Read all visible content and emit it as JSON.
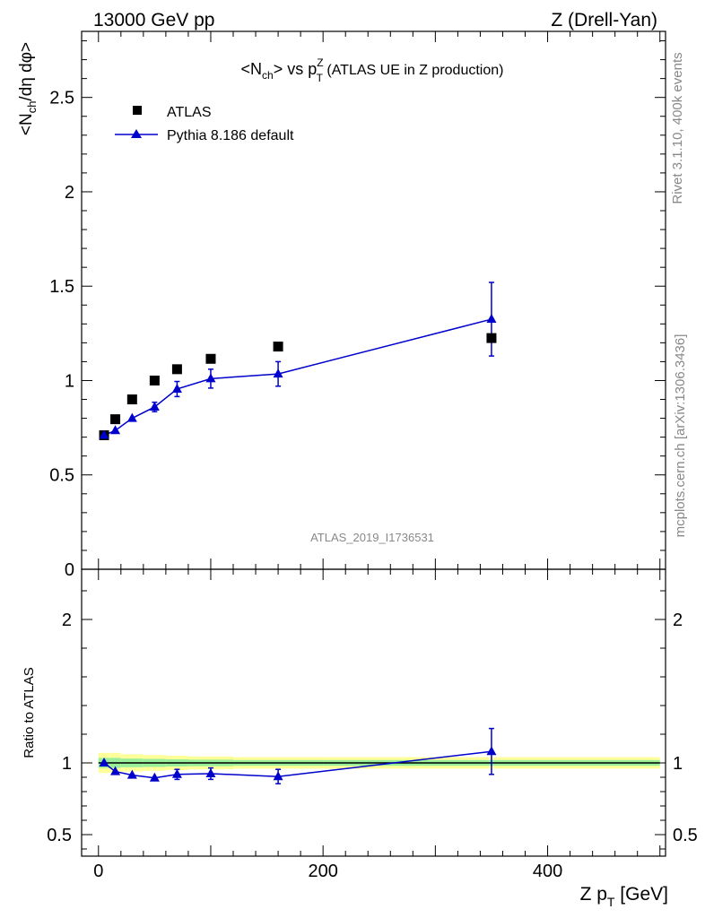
{
  "header": {
    "left": "13000 GeV pp",
    "right": "Z (Drell-Yan)"
  },
  "side_text": {
    "rivet": "Rivet 3.1.10,  400k events",
    "mcplots": "mcplots.cern.ch [arXiv:1306.3436]"
  },
  "chart_data": [
    {
      "type": "scatter",
      "title_parts": {
        "a": "<N",
        "a_sub": "ch",
        "b": "> vs p",
        "b_sup": "Z",
        "b_sub": "T",
        "c": " (ATLAS UE in Z production)"
      },
      "ylabel_parts": {
        "a": "<N",
        "sub": "ch",
        "b": "/dη dφ>"
      },
      "analysis_label": "ATLAS_2019_I1736531",
      "xlim": [
        -15,
        505
      ],
      "ylim": [
        0,
        2.85
      ],
      "yticks": [
        0.5,
        1,
        1.5,
        2,
        2.5
      ],
      "ytick_labels": [
        "0.5",
        "1",
        "1.5",
        "2",
        "2.5"
      ],
      "ybottom_label": "0",
      "series": [
        {
          "name": "ATLAS",
          "marker": "square",
          "color": "#000000",
          "x": [
            5,
            15,
            30,
            50,
            70,
            100,
            160,
            350
          ],
          "y": [
            0.71,
            0.795,
            0.9,
            1.0,
            1.06,
            1.115,
            1.18,
            1.225
          ]
        },
        {
          "name": "Pythia 8.186 default",
          "marker": "triangle",
          "color": "#0000cc",
          "x": [
            5,
            15,
            30,
            50,
            70,
            100,
            160,
            350
          ],
          "y": [
            0.71,
            0.735,
            0.8,
            0.86,
            0.955,
            1.01,
            1.035,
            1.325
          ],
          "err": [
            0.01,
            0.015,
            0.015,
            0.025,
            0.04,
            0.05,
            0.065,
            0.195
          ]
        }
      ]
    },
    {
      "type": "scatter",
      "ylabel": "Ratio to ATLAS",
      "xlabel_parts": {
        "a": "Z p",
        "sub": "T",
        "b": " [GeV]"
      },
      "xlim": [
        -15,
        505
      ],
      "ylim": [
        0.35,
        2.35
      ],
      "yticks": [
        0.5,
        1,
        2
      ],
      "ytick_labels": [
        "0.5",
        "1",
        "2"
      ],
      "xticks": [
        0,
        200,
        400
      ],
      "xtick_labels": [
        "0",
        "200",
        "400"
      ],
      "band_edges": [
        0,
        10,
        20,
        40,
        60,
        80,
        120,
        200,
        500
      ],
      "band_yellow_half": [
        0.07,
        0.07,
        0.06,
        0.055,
        0.05,
        0.045,
        0.04,
        0.04
      ],
      "band_green_half": [
        0.035,
        0.035,
        0.03,
        0.028,
        0.025,
        0.023,
        0.02,
        0.02
      ],
      "series": [
        {
          "name": "Pythia 8.186 default",
          "color": "#0000cc",
          "x": [
            5,
            15,
            30,
            50,
            70,
            100,
            160,
            350
          ],
          "y": [
            1.0,
            0.94,
            0.915,
            0.895,
            0.92,
            0.925,
            0.905,
            1.08
          ],
          "err": [
            0.01,
            0.015,
            0.015,
            0.02,
            0.035,
            0.04,
            0.05,
            0.16
          ]
        }
      ]
    }
  ]
}
